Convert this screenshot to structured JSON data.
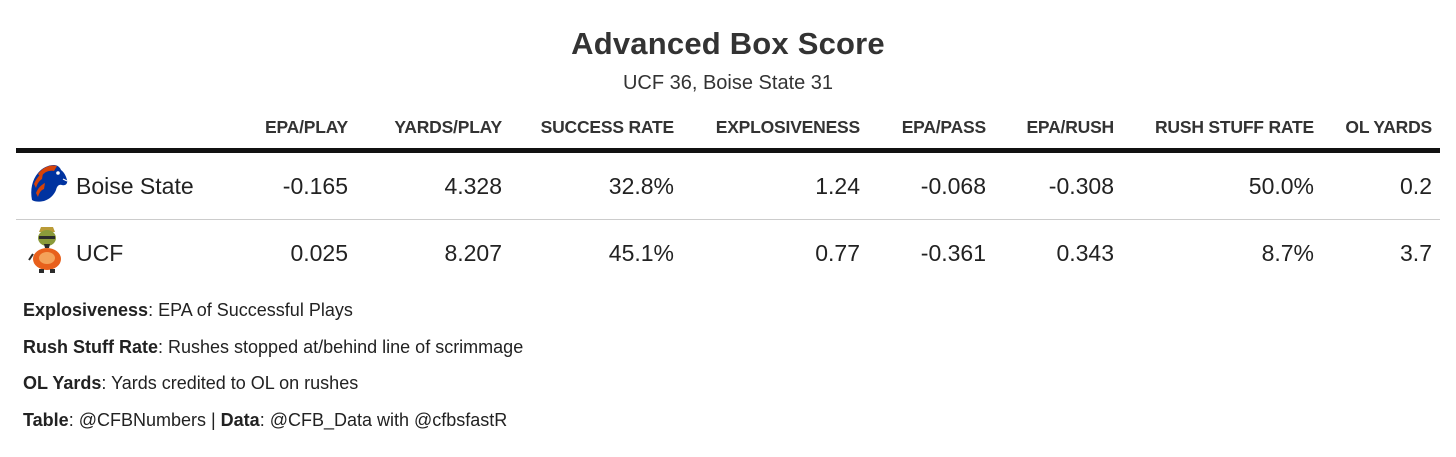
{
  "title": "Advanced Box Score",
  "subtitle": "UCF 36, Boise State 31",
  "chart_data": {
    "type": "table",
    "title": "Advanced Box Score",
    "subtitle": "UCF 36, Boise State 31",
    "columns": [
      "EPA/PLAY",
      "YARDS/PLAY",
      "SUCCESS RATE",
      "EXPLOSIVENESS",
      "EPA/PASS",
      "EPA/RUSH",
      "RUSH STUFF RATE",
      "OL YARDS"
    ],
    "rows": [
      {
        "team": "Boise State",
        "logo_icon": "bronco-logo-icon",
        "values": [
          "-0.165",
          "4.328",
          "32.8%",
          "1.24",
          "-0.068",
          "-0.308",
          "50.0%",
          "0.2"
        ]
      },
      {
        "team": "UCF",
        "logo_icon": "knightro-logo-icon",
        "values": [
          "0.025",
          "8.207",
          "45.1%",
          "0.77",
          "-0.361",
          "0.343",
          "8.7%",
          "3.7"
        ]
      }
    ]
  },
  "notes": [
    {
      "term": "Explosiveness",
      "text": ": EPA of Successful Plays"
    },
    {
      "term": "Rush Stuff Rate",
      "text": ": Rushes stopped at/behind line of scrimmage"
    },
    {
      "term": "OL Yards",
      "text": ": Yards credited to OL on rushes"
    }
  ],
  "credit": {
    "table_label": "Table",
    "table_value": ": @CFBNumbers | ",
    "data_label": "Data",
    "data_value": ": @CFB_Data with @cfbsfastR"
  },
  "colors": {
    "boise_blue": "#0033A0",
    "boise_orange": "#D64309",
    "ucf_gold": "#BA9B37",
    "header_rule": "#111111",
    "row_rule": "#cccccc"
  }
}
